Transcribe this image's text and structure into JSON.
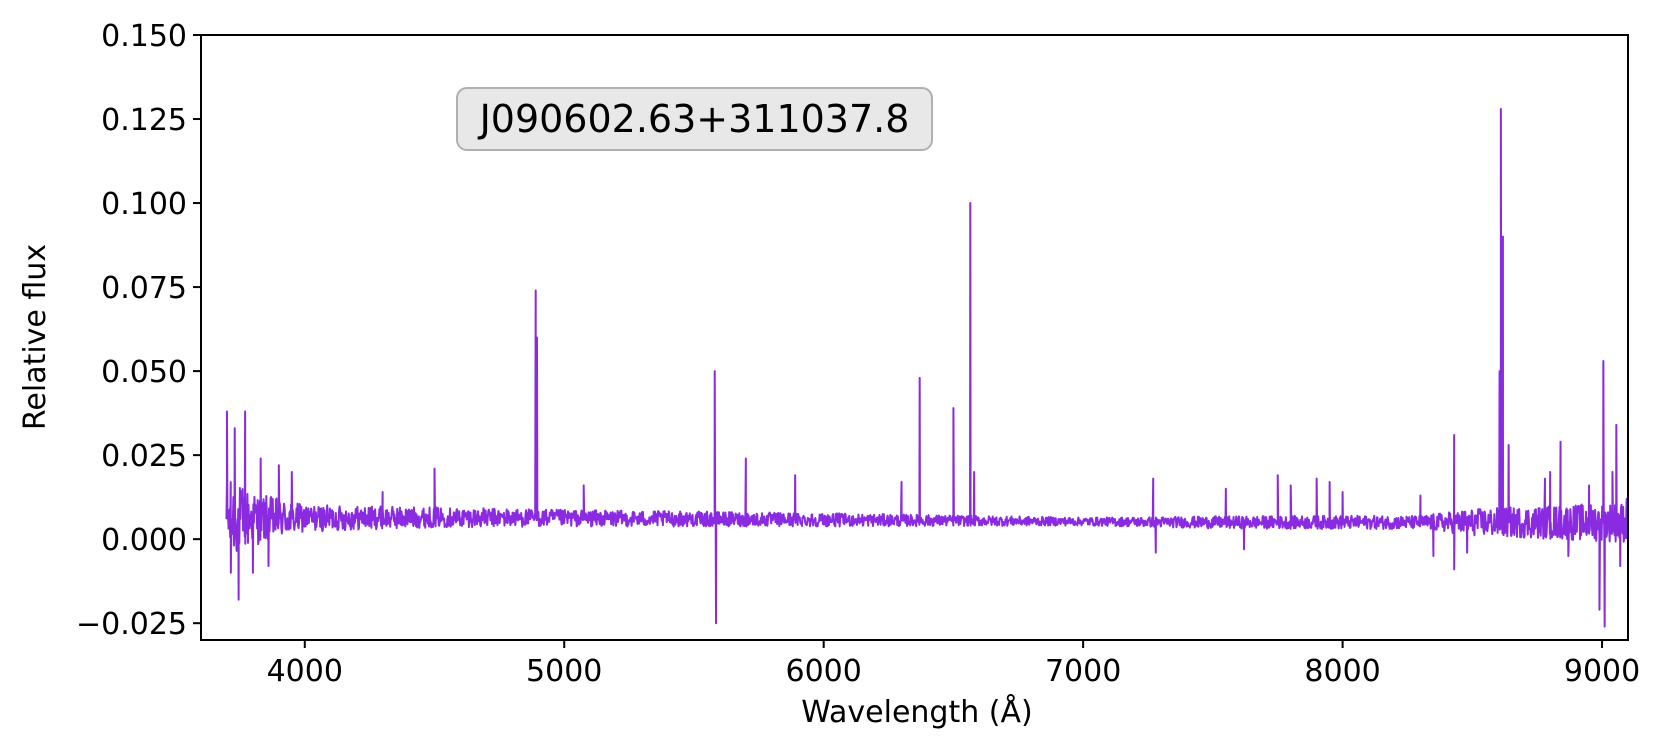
{
  "chart_data": {
    "type": "line",
    "annotation": "J090602.63+311037.8",
    "xlabel": "Wavelength (Å)",
    "ylabel": "Relative flux",
    "xlim": [
      3600,
      9100
    ],
    "ylim": [
      -0.03,
      0.15
    ],
    "xticks": [
      4000,
      5000,
      6000,
      7000,
      8000,
      9000
    ],
    "xtick_labels": [
      "4000",
      "5000",
      "6000",
      "7000",
      "8000",
      "9000"
    ],
    "yticks": [
      -0.025,
      0.0,
      0.025,
      0.05,
      0.075,
      0.1,
      0.125,
      0.15
    ],
    "ytick_labels": [
      "−0.025",
      "0.000",
      "0.025",
      "0.050",
      "0.075",
      "0.100",
      "0.125",
      "0.150"
    ],
    "grid": false,
    "line_color": "#8a2be2",
    "series": [
      {
        "x_start": 3700,
        "x_end": 9100,
        "baseline": [
          [
            3700,
            0.006
          ],
          [
            4500,
            0.0065
          ],
          [
            5500,
            0.006
          ],
          [
            6500,
            0.0055
          ],
          [
            7500,
            0.005
          ],
          [
            8500,
            0.005
          ],
          [
            9100,
            0.005
          ]
        ],
        "noise": [
          [
            3700,
            0.012
          ],
          [
            3800,
            0.008
          ],
          [
            4000,
            0.004
          ],
          [
            4500,
            0.003
          ],
          [
            5000,
            0.0025
          ],
          [
            6000,
            0.002
          ],
          [
            7000,
            0.0012
          ],
          [
            7500,
            0.0018
          ],
          [
            8000,
            0.002
          ],
          [
            8300,
            0.002
          ],
          [
            8500,
            0.004
          ],
          [
            8800,
            0.005
          ],
          [
            9100,
            0.006
          ]
        ],
        "features": [
          [
            3700,
            0.038
          ],
          [
            3715,
            -0.01
          ],
          [
            3730,
            0.033
          ],
          [
            3745,
            -0.018
          ],
          [
            3770,
            0.038
          ],
          [
            3800,
            -0.01
          ],
          [
            3830,
            0.024
          ],
          [
            3860,
            -0.008
          ],
          [
            3900,
            0.022
          ],
          [
            3950,
            0.02
          ],
          [
            4300,
            0.014
          ],
          [
            4500,
            0.021
          ],
          [
            4890,
            0.074
          ],
          [
            4895,
            0.06
          ],
          [
            5075,
            0.016
          ],
          [
            5580,
            0.05
          ],
          [
            5585,
            -0.025
          ],
          [
            5700,
            0.024
          ],
          [
            5890,
            0.019
          ],
          [
            6300,
            0.017
          ],
          [
            6370,
            0.048
          ],
          [
            6500,
            0.039
          ],
          [
            6565,
            0.1
          ],
          [
            6580,
            0.02
          ],
          [
            7270,
            0.018
          ],
          [
            7280,
            -0.004
          ],
          [
            7550,
            0.015
          ],
          [
            7620,
            -0.003
          ],
          [
            7750,
            0.019
          ],
          [
            7800,
            0.016
          ],
          [
            7900,
            0.018
          ],
          [
            7950,
            0.017
          ],
          [
            8000,
            0.014
          ],
          [
            8300,
            0.013
          ],
          [
            8350,
            -0.005
          ],
          [
            8430,
            0.031
          ],
          [
            8430,
            -0.009
          ],
          [
            8480,
            -0.004
          ],
          [
            8605,
            0.05
          ],
          [
            8610,
            0.128
          ],
          [
            8618,
            0.09
          ],
          [
            8640,
            0.028
          ],
          [
            8780,
            0.018
          ],
          [
            8800,
            0.02
          ],
          [
            8840,
            0.029
          ],
          [
            8870,
            -0.005
          ],
          [
            8950,
            0.016
          ],
          [
            8990,
            -0.021
          ],
          [
            9005,
            0.053
          ],
          [
            9010,
            -0.026
          ],
          [
            9040,
            0.02
          ],
          [
            9055,
            0.034
          ],
          [
            9070,
            -0.008
          ],
          [
            9095,
            0.012
          ]
        ]
      }
    ]
  }
}
